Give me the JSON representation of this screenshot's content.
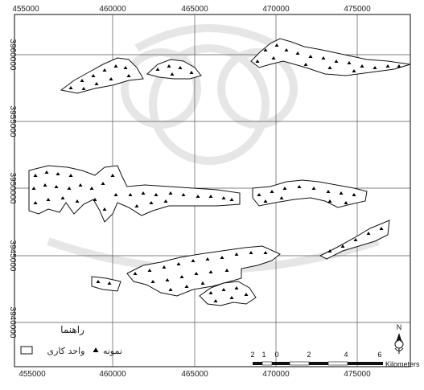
{
  "map": {
    "x_ticks": [
      "455000",
      "460000",
      "465000",
      "470000",
      "475000"
    ],
    "y_ticks": [
      "3960000",
      "3955000",
      "3950000",
      "3945000",
      "3940000"
    ]
  },
  "legend": {
    "title": "راهنما",
    "sample_label": "نمونه",
    "unit_label": "واحد کاری"
  },
  "scale_bar": {
    "labels": [
      "2",
      "1",
      "0",
      "2",
      "4",
      "6"
    ],
    "unit": "Kilometers"
  },
  "north_arrow": {
    "label": "N"
  },
  "colors": {
    "frame": "#333333",
    "grid": "#555555",
    "polygon_stroke": "#111111",
    "sample": "#000000",
    "watermark": "#e2e2e2"
  }
}
